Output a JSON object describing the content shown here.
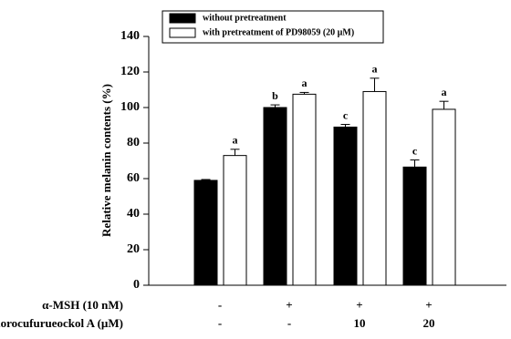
{
  "chart_data": {
    "type": "bar",
    "y_label": "Relative melanin contents (%)",
    "ylim": [
      0,
      140
    ],
    "yticks": [
      0,
      20,
      40,
      60,
      80,
      100,
      120,
      140
    ],
    "series": [
      {
        "name": "without pretreatment",
        "color": "#000000",
        "values": [
          59,
          100,
          89,
          66.5
        ],
        "errors": [
          0.5,
          1.5,
          1.5,
          4
        ],
        "letters": [
          null,
          "b",
          "c",
          "c"
        ]
      },
      {
        "name": "with pretreatment of PD98059 (20 µM)",
        "color": "#ffffff",
        "values": [
          73,
          107.5,
          109,
          99
        ],
        "errors": [
          3.5,
          1,
          7.5,
          4.5
        ],
        "letters": [
          "a",
          "a",
          "a",
          "a"
        ]
      }
    ],
    "treatments": [
      {
        "label": "α-MSH (10 nM)",
        "values": [
          "-",
          "+",
          "+",
          "+"
        ]
      },
      {
        "label": "Phlorocufurueockol A (µM)",
        "values": [
          "-",
          "-",
          "10",
          "20"
        ]
      }
    ]
  }
}
